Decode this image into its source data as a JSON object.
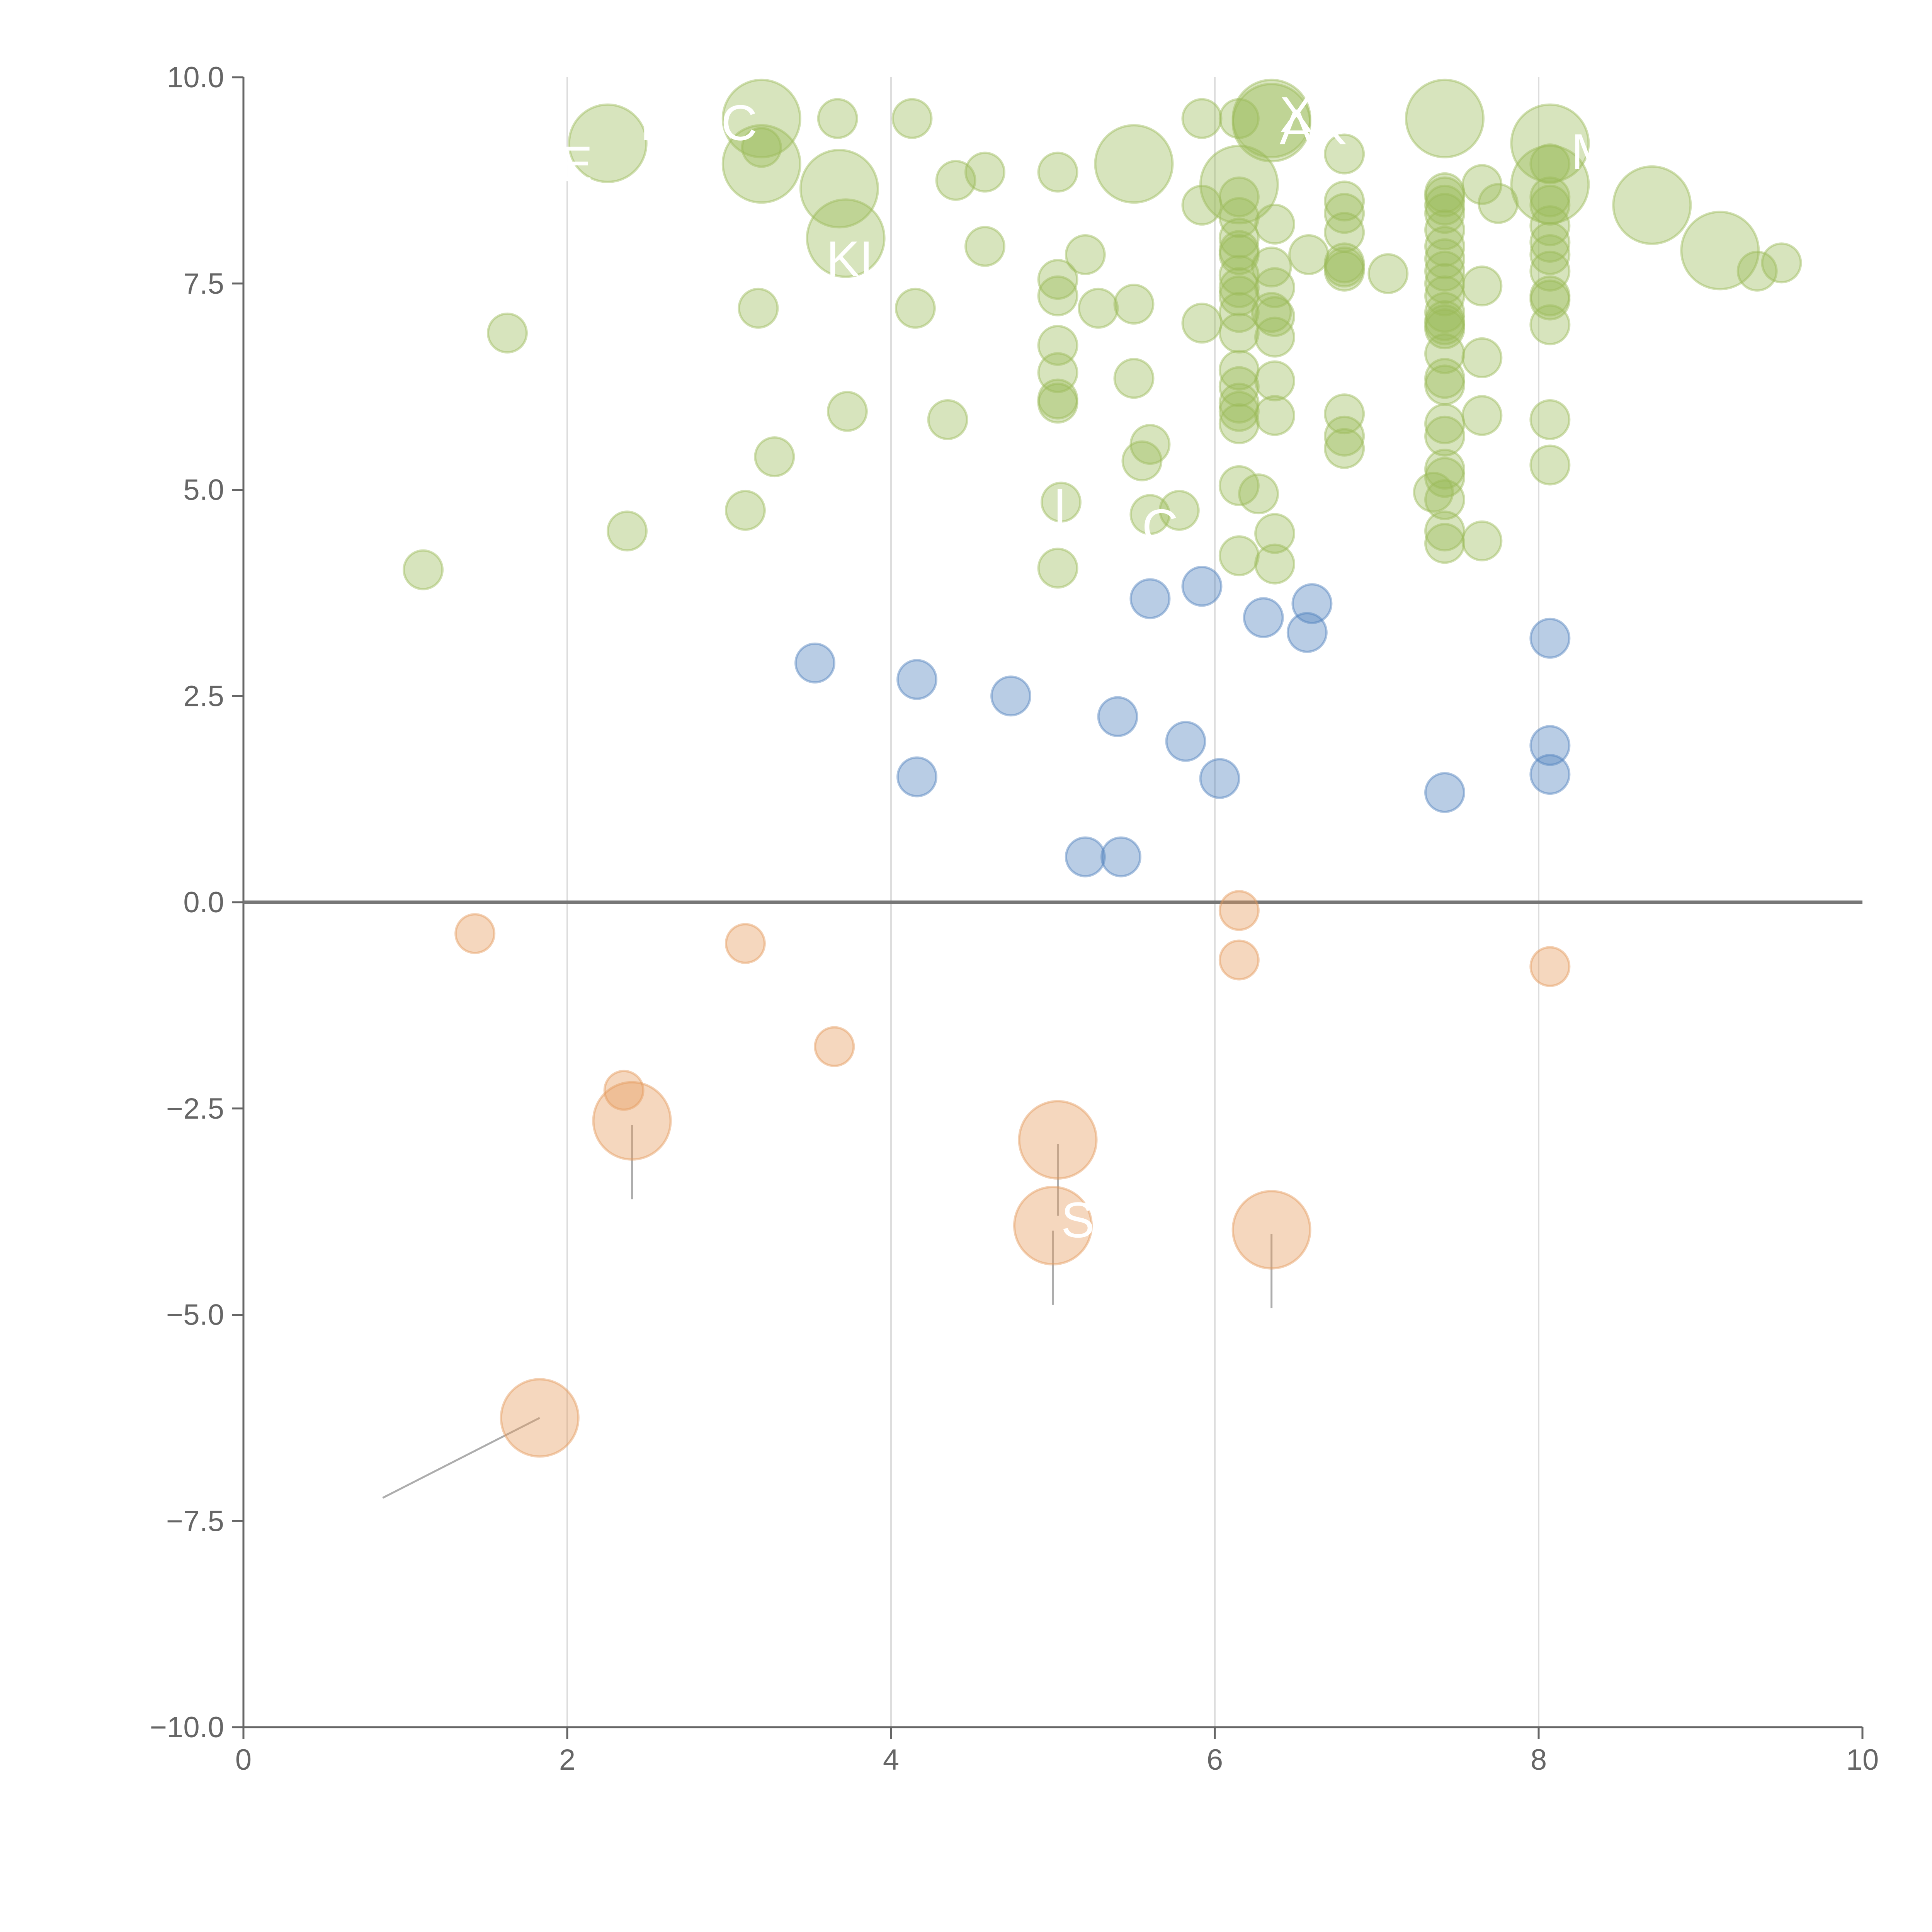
{
  "chart_data": {
    "type": "scatter",
    "subtype": "bubble",
    "title": "",
    "xlabel": "",
    "ylabel": "",
    "xlim": [
      0,
      10
    ],
    "ylim": [
      -10,
      10
    ],
    "x_ticks": [
      0,
      2,
      4,
      6,
      8,
      10
    ],
    "x_tick_labels": [
      "0",
      "2",
      "4",
      "6",
      "8",
      "10"
    ],
    "y_ticks": [
      -10,
      -7.5,
      -5,
      -2.5,
      0,
      2.5,
      5,
      7.5,
      10
    ],
    "y_tick_labels": [
      "−10.0",
      "−7.5",
      "−5.0",
      "−2.5",
      "0.0",
      "2.5",
      "5.0",
      "7.5",
      "10.0"
    ],
    "vertical_gridlines_at": [
      2,
      4,
      6,
      8
    ],
    "horizontal_reference_line": 0,
    "legend": "none",
    "series": [
      {
        "name": "green",
        "color": "#9bbb59",
        "points": [
          {
            "x": 2.25,
            "y": 9.2,
            "r": 3,
            "label": "R",
            "lx": 2.45,
            "ly": 9.45
          },
          {
            "x": 3.2,
            "y": 9.5,
            "r": 3,
            "label": "C",
            "lx": 2.95,
            "ly": 9.45
          },
          {
            "x": 3.2,
            "y": 8.95,
            "r": 3,
            "label": "E",
            "lx": 1.95,
            "ly": 8.95
          },
          {
            "x": 3.68,
            "y": 8.65,
            "r": 3,
            "label": ""
          },
          {
            "x": 3.72,
            "y": 8.05,
            "r": 3,
            "label": "KL",
            "lx": 3.6,
            "ly": 7.8
          },
          {
            "x": 5.5,
            "y": 8.95,
            "r": 3,
            "label": ""
          },
          {
            "x": 6.35,
            "y": 9.5,
            "r": 3,
            "label": "XL",
            "lx": 6.4,
            "ly": 9.55
          },
          {
            "x": 6.35,
            "y": 9.45,
            "r": 3,
            "label": "AK",
            "lx": 6.4,
            "ly": 9.4
          },
          {
            "x": 6.15,
            "y": 8.7,
            "r": 3,
            "label": ""
          },
          {
            "x": 7.42,
            "y": 9.5,
            "r": 3,
            "label": ""
          },
          {
            "x": 8.07,
            "y": 9.2,
            "r": 3,
            "label": "M",
            "lx": 8.2,
            "ly": 9.1
          },
          {
            "x": 8.07,
            "y": 8.7,
            "r": 3,
            "label": ""
          },
          {
            "x": 8.7,
            "y": 8.45,
            "r": 3,
            "label": ""
          },
          {
            "x": 9.12,
            "y": 7.9,
            "r": 3,
            "label": ""
          },
          {
            "x": 5.6,
            "y": 4.7,
            "r": 1,
            "label": "C",
            "lx": 5.55,
            "ly": 4.55
          },
          {
            "x": 5.05,
            "y": 4.85,
            "r": 1,
            "label": "I",
            "lx": 5.0,
            "ly": 4.8
          },
          {
            "x": 3.67,
            "y": 9.5,
            "r": 1
          },
          {
            "x": 4.13,
            "y": 9.5,
            "r": 1
          },
          {
            "x": 3.2,
            "y": 9.15,
            "r": 1
          },
          {
            "x": 4.4,
            "y": 8.75,
            "r": 1
          },
          {
            "x": 4.58,
            "y": 8.85,
            "r": 1
          },
          {
            "x": 5.03,
            "y": 8.85,
            "r": 1
          },
          {
            "x": 5.92,
            "y": 9.5,
            "r": 1
          },
          {
            "x": 6.15,
            "y": 9.5,
            "r": 1
          },
          {
            "x": 6.8,
            "y": 9.07,
            "r": 1
          },
          {
            "x": 5.2,
            "y": 7.85,
            "r": 1
          },
          {
            "x": 4.58,
            "y": 7.95,
            "r": 1
          },
          {
            "x": 5.03,
            "y": 7.55,
            "r": 1
          },
          {
            "x": 5.03,
            "y": 7.35,
            "r": 1
          },
          {
            "x": 5.28,
            "y": 7.2,
            "r": 1
          },
          {
            "x": 5.5,
            "y": 7.25,
            "r": 1
          },
          {
            "x": 3.18,
            "y": 7.2,
            "r": 1
          },
          {
            "x": 4.15,
            "y": 7.2,
            "r": 1
          },
          {
            "x": 1.63,
            "y": 6.9,
            "r": 1
          },
          {
            "x": 5.03,
            "y": 6.75,
            "r": 1
          },
          {
            "x": 5.03,
            "y": 6.42,
            "r": 1
          },
          {
            "x": 5.5,
            "y": 6.35,
            "r": 1
          },
          {
            "x": 5.03,
            "y": 6.1,
            "r": 1
          },
          {
            "x": 5.03,
            "y": 6.05,
            "r": 1
          },
          {
            "x": 3.73,
            "y": 5.95,
            "r": 1
          },
          {
            "x": 4.35,
            "y": 5.85,
            "r": 1
          },
          {
            "x": 5.6,
            "y": 5.55,
            "r": 1
          },
          {
            "x": 5.55,
            "y": 5.35,
            "r": 1
          },
          {
            "x": 3.28,
            "y": 5.4,
            "r": 1
          },
          {
            "x": 3.1,
            "y": 4.75,
            "r": 1
          },
          {
            "x": 2.37,
            "y": 4.5,
            "r": 1
          },
          {
            "x": 5.78,
            "y": 4.75,
            "r": 1
          },
          {
            "x": 5.03,
            "y": 4.05,
            "r": 1
          },
          {
            "x": 1.11,
            "y": 4.03,
            "r": 1
          },
          {
            "x": 5.92,
            "y": 8.45,
            "r": 1
          },
          {
            "x": 5.92,
            "y": 7.02,
            "r": 1
          },
          {
            "x": 6.15,
            "y": 8.55,
            "r": 1
          },
          {
            "x": 6.15,
            "y": 8.3,
            "r": 1
          },
          {
            "x": 6.15,
            "y": 8.05,
            "r": 1
          },
          {
            "x": 6.15,
            "y": 7.9,
            "r": 1
          },
          {
            "x": 6.15,
            "y": 7.85,
            "r": 1
          },
          {
            "x": 6.15,
            "y": 7.6,
            "r": 1
          },
          {
            "x": 6.15,
            "y": 7.45,
            "r": 1
          },
          {
            "x": 6.15,
            "y": 7.35,
            "r": 1
          },
          {
            "x": 6.15,
            "y": 7.15,
            "r": 1
          },
          {
            "x": 6.15,
            "y": 6.9,
            "r": 1
          },
          {
            "x": 6.15,
            "y": 6.45,
            "r": 1
          },
          {
            "x": 6.15,
            "y": 6.25,
            "r": 1
          },
          {
            "x": 6.15,
            "y": 6.05,
            "r": 1
          },
          {
            "x": 6.15,
            "y": 5.95,
            "r": 1
          },
          {
            "x": 6.15,
            "y": 5.8,
            "r": 1
          },
          {
            "x": 6.15,
            "y": 5.05,
            "r": 1
          },
          {
            "x": 6.15,
            "y": 4.2,
            "r": 1
          },
          {
            "x": 6.27,
            "y": 4.95,
            "r": 1
          },
          {
            "x": 6.37,
            "y": 8.22,
            "r": 1
          },
          {
            "x": 6.35,
            "y": 7.7,
            "r": 1
          },
          {
            "x": 6.37,
            "y": 7.45,
            "r": 1
          },
          {
            "x": 6.35,
            "y": 7.15,
            "r": 1
          },
          {
            "x": 6.37,
            "y": 7.1,
            "r": 1
          },
          {
            "x": 6.37,
            "y": 6.85,
            "r": 1
          },
          {
            "x": 6.37,
            "y": 6.32,
            "r": 1
          },
          {
            "x": 6.37,
            "y": 5.9,
            "r": 1
          },
          {
            "x": 6.37,
            "y": 4.47,
            "r": 1
          },
          {
            "x": 6.37,
            "y": 4.1,
            "r": 1
          },
          {
            "x": 6.58,
            "y": 7.85,
            "r": 1
          },
          {
            "x": 6.8,
            "y": 8.5,
            "r": 1
          },
          {
            "x": 6.8,
            "y": 8.35,
            "r": 1
          },
          {
            "x": 6.8,
            "y": 8.12,
            "r": 1
          },
          {
            "x": 6.8,
            "y": 7.75,
            "r": 1
          },
          {
            "x": 6.8,
            "y": 7.7,
            "r": 1
          },
          {
            "x": 6.8,
            "y": 7.65,
            "r": 1
          },
          {
            "x": 6.8,
            "y": 5.92,
            "r": 1
          },
          {
            "x": 6.8,
            "y": 5.65,
            "r": 1
          },
          {
            "x": 6.8,
            "y": 5.5,
            "r": 1
          },
          {
            "x": 7.07,
            "y": 7.62,
            "r": 1
          },
          {
            "x": 7.42,
            "y": 8.6,
            "r": 1
          },
          {
            "x": 7.42,
            "y": 8.55,
            "r": 1
          },
          {
            "x": 7.42,
            "y": 8.45,
            "r": 1
          },
          {
            "x": 7.42,
            "y": 8.35,
            "r": 1
          },
          {
            "x": 7.42,
            "y": 8.15,
            "r": 1
          },
          {
            "x": 7.42,
            "y": 7.95,
            "r": 1
          },
          {
            "x": 7.42,
            "y": 7.8,
            "r": 1
          },
          {
            "x": 7.42,
            "y": 7.65,
            "r": 1
          },
          {
            "x": 7.42,
            "y": 7.5,
            "r": 1
          },
          {
            "x": 7.42,
            "y": 7.35,
            "r": 1
          },
          {
            "x": 7.42,
            "y": 7.15,
            "r": 1
          },
          {
            "x": 7.42,
            "y": 7.05,
            "r": 1
          },
          {
            "x": 7.42,
            "y": 7.0,
            "r": 1
          },
          {
            "x": 7.42,
            "y": 6.95,
            "r": 1
          },
          {
            "x": 7.42,
            "y": 6.65,
            "r": 1
          },
          {
            "x": 7.42,
            "y": 6.35,
            "r": 1
          },
          {
            "x": 7.42,
            "y": 6.27,
            "r": 1
          },
          {
            "x": 7.42,
            "y": 5.8,
            "r": 1
          },
          {
            "x": 7.42,
            "y": 5.65,
            "r": 1
          },
          {
            "x": 7.42,
            "y": 5.25,
            "r": 1
          },
          {
            "x": 7.42,
            "y": 5.15,
            "r": 1
          },
          {
            "x": 7.42,
            "y": 4.88,
            "r": 1
          },
          {
            "x": 7.42,
            "y": 4.5,
            "r": 1
          },
          {
            "x": 7.42,
            "y": 4.35,
            "r": 1
          },
          {
            "x": 7.35,
            "y": 4.97,
            "r": 1
          },
          {
            "x": 7.65,
            "y": 8.7,
            "r": 1
          },
          {
            "x": 7.65,
            "y": 7.47,
            "r": 1
          },
          {
            "x": 7.65,
            "y": 6.6,
            "r": 1
          },
          {
            "x": 7.65,
            "y": 5.9,
            "r": 1
          },
          {
            "x": 7.65,
            "y": 4.38,
            "r": 1
          },
          {
            "x": 7.75,
            "y": 8.47,
            "r": 1
          },
          {
            "x": 8.07,
            "y": 8.95,
            "r": 1
          },
          {
            "x": 8.07,
            "y": 8.55,
            "r": 1
          },
          {
            "x": 8.07,
            "y": 8.45,
            "r": 1
          },
          {
            "x": 8.07,
            "y": 8.2,
            "r": 1
          },
          {
            "x": 8.07,
            "y": 8.0,
            "r": 1
          },
          {
            "x": 8.07,
            "y": 7.85,
            "r": 1
          },
          {
            "x": 8.07,
            "y": 7.65,
            "r": 1
          },
          {
            "x": 8.07,
            "y": 7.35,
            "r": 1
          },
          {
            "x": 8.07,
            "y": 7.3,
            "r": 1
          },
          {
            "x": 8.07,
            "y": 7.0,
            "r": 1
          },
          {
            "x": 8.07,
            "y": 5.85,
            "r": 1
          },
          {
            "x": 8.07,
            "y": 5.3,
            "r": 1
          },
          {
            "x": 9.35,
            "y": 7.65,
            "r": 1
          },
          {
            "x": 9.5,
            "y": 7.75,
            "r": 1
          }
        ]
      },
      {
        "name": "blue",
        "color": "#4f81bd",
        "points": [
          {
            "x": 3.53,
            "y": 2.9,
            "r": 1
          },
          {
            "x": 4.16,
            "y": 2.7,
            "r": 1
          },
          {
            "x": 4.16,
            "y": 1.52,
            "r": 1
          },
          {
            "x": 4.74,
            "y": 2.5,
            "r": 1
          },
          {
            "x": 5.2,
            "y": 0.55,
            "r": 1
          },
          {
            "x": 5.42,
            "y": 0.55,
            "r": 1
          },
          {
            "x": 5.4,
            "y": 2.25,
            "r": 1
          },
          {
            "x": 5.6,
            "y": 3.68,
            "r": 1
          },
          {
            "x": 5.82,
            "y": 1.95,
            "r": 1
          },
          {
            "x": 5.92,
            "y": 3.83,
            "r": 1
          },
          {
            "x": 6.03,
            "y": 1.5,
            "r": 1
          },
          {
            "x": 6.3,
            "y": 3.45,
            "r": 1
          },
          {
            "x": 6.57,
            "y": 3.27,
            "r": 1
          },
          {
            "x": 6.6,
            "y": 3.62,
            "r": 1
          },
          {
            "x": 7.42,
            "y": 1.33,
            "r": 1
          },
          {
            "x": 8.07,
            "y": 3.2,
            "r": 1
          },
          {
            "x": 8.07,
            "y": 1.9,
            "r": 1
          },
          {
            "x": 8.07,
            "y": 1.55,
            "r": 1
          }
        ]
      },
      {
        "name": "orange",
        "color": "#e59a5c",
        "points": [
          {
            "x": 1.43,
            "y": -0.38,
            "r": 1
          },
          {
            "x": 3.1,
            "y": -0.5,
            "r": 1
          },
          {
            "x": 3.65,
            "y": -1.75,
            "r": 1
          },
          {
            "x": 2.35,
            "y": -2.28,
            "r": 1
          },
          {
            "x": 6.15,
            "y": -0.1,
            "r": 1
          },
          {
            "x": 6.15,
            "y": -0.7,
            "r": 1
          },
          {
            "x": 8.07,
            "y": -0.78,
            "r": 1
          },
          {
            "x": 2.4,
            "y": -2.65,
            "r": 3,
            "label": ""
          },
          {
            "x": 5.03,
            "y": -2.88,
            "r": 3,
            "label": ""
          },
          {
            "x": 5.0,
            "y": -3.92,
            "r": 3,
            "label": "S",
            "lx": 5.05,
            "ly": -3.85
          },
          {
            "x": 6.35,
            "y": -3.97,
            "r": 3,
            "label": ""
          },
          {
            "x": 1.83,
            "y": -6.25,
            "r": 3,
            "label": ""
          }
        ]
      }
    ],
    "leader_lines": [
      {
        "series": "orange",
        "x1": 1.83,
        "y1": -6.25,
        "x2": 0.86,
        "y2": -7.22
      },
      {
        "series": "orange",
        "x1": 2.4,
        "y1": -2.7,
        "x2": 2.4,
        "y2": -3.6
      },
      {
        "series": "orange",
        "x1": 5.03,
        "y1": -2.93,
        "x2": 5.03,
        "y2": -3.8
      },
      {
        "series": "orange",
        "x1": 5.0,
        "y1": -3.98,
        "x2": 5.0,
        "y2": -4.88
      },
      {
        "series": "orange",
        "x1": 6.35,
        "y1": -4.02,
        "x2": 6.35,
        "y2": -4.92
      },
      {
        "series": "green",
        "x1": 2.25,
        "y1": 9.2,
        "x2": 2.0,
        "y2": 9.05
      },
      {
        "series": "green",
        "x1": 3.2,
        "y1": 9.5,
        "x2": 3.35,
        "y2": 9.5
      },
      {
        "series": "green",
        "x1": 3.2,
        "y1": 8.95,
        "x2": 3.05,
        "y2": 8.7
      },
      {
        "series": "green",
        "x1": 3.68,
        "y1": 8.65,
        "x2": 3.66,
        "y2": 8.3
      },
      {
        "series": "green",
        "x1": 5.5,
        "y1": 8.95,
        "x2": 5.35,
        "y2": 9.15
      },
      {
        "series": "green",
        "x1": 6.15,
        "y1": 8.7,
        "x2": 6.1,
        "y2": 8.5
      },
      {
        "series": "green",
        "x1": 7.42,
        "y1": 9.5,
        "x2": 7.25,
        "y2": 9.5
      },
      {
        "series": "green",
        "x1": 8.07,
        "y1": 8.7,
        "x2": 8.2,
        "y2": 8.9
      },
      {
        "series": "green",
        "x1": 8.7,
        "y1": 8.45,
        "x2": 8.68,
        "y2": 8.6
      },
      {
        "series": "green",
        "x1": 9.12,
        "y1": 7.9,
        "x2": 9.12,
        "y2": 7.55
      },
      {
        "series": "green",
        "x1": 5.5,
        "y1": 6.35,
        "x2": 5.45,
        "y2": 6.15
      }
    ]
  }
}
